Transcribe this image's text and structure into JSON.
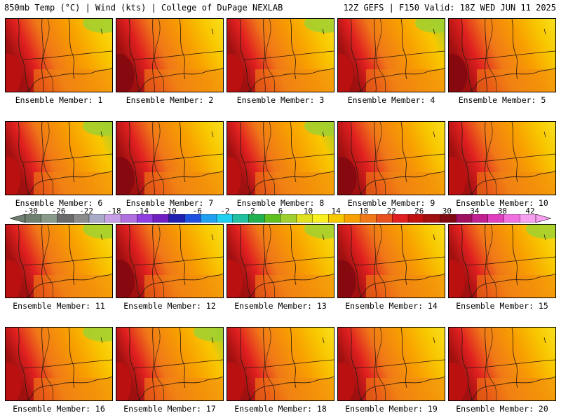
{
  "header": {
    "left": "850mb Temp (°C) | Wind (kts) | College of DuPage NEXLAB",
    "right": "12Z GEFS | F150 Valid: 18Z WED JUN 11 2025"
  },
  "panels": [
    {
      "label": "Ensemble Member: 1"
    },
    {
      "label": "Ensemble Member: 2"
    },
    {
      "label": "Ensemble Member: 3"
    },
    {
      "label": "Ensemble Member: 4"
    },
    {
      "label": "Ensemble Member: 5"
    },
    {
      "label": "Ensemble Member: 6"
    },
    {
      "label": "Ensemble Member: 7"
    },
    {
      "label": "Ensemble Member: 8"
    },
    {
      "label": "Ensemble Member: 9"
    },
    {
      "label": "Ensemble Member: 10"
    },
    {
      "label": "Ensemble Member: 11"
    },
    {
      "label": "Ensemble Member: 12"
    },
    {
      "label": "Ensemble Member: 13"
    },
    {
      "label": "Ensemble Member: 14"
    },
    {
      "label": "Ensemble Member: 15"
    },
    {
      "label": "Ensemble Member: 16"
    },
    {
      "label": "Ensemble Member: 17"
    },
    {
      "label": "Ensemble Member: 18"
    },
    {
      "label": "Ensemble Member: 19"
    },
    {
      "label": "Ensemble Member: 20"
    }
  ],
  "colorbar": {
    "labels": [
      "-30",
      "-26",
      "-22",
      "-18",
      "-14",
      "-10",
      "-6",
      "-2",
      "2",
      "6",
      "10",
      "14",
      "18",
      "22",
      "26",
      "30",
      "34",
      "38",
      "42"
    ],
    "colors": [
      "#6f7f6f",
      "#8a9a8a",
      "#6a6a6a",
      "#8a8a8a",
      "#a9a9c8",
      "#c8a0e8",
      "#b070e0",
      "#9040e0",
      "#7020c0",
      "#2020b0",
      "#2050e0",
      "#20a0f0",
      "#20d0f0",
      "#20c0a0",
      "#20b050",
      "#60c020",
      "#a0d030",
      "#e0e020",
      "#f8f020",
      "#f8c800",
      "#f8a000",
      "#f07818",
      "#e85020",
      "#e02020",
      "#c01010",
      "#a01010",
      "#800810",
      "#a01060",
      "#c02090",
      "#e040c0",
      "#f070e0",
      "#f8a0f0"
    ]
  }
}
